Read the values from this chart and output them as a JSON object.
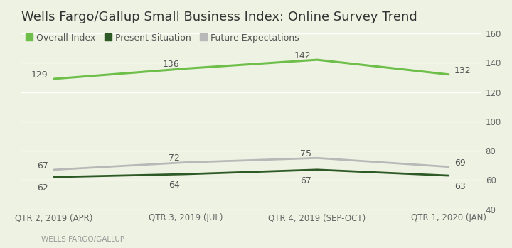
{
  "title": "Wells Fargo/Gallup Small Business Index: Online Survey Trend",
  "x_labels": [
    "QTR 2, 2019 (APR)",
    "QTR 3, 2019 (JUL)",
    "QTR 4, 2019 (SEP-OCT)",
    "QTR 1, 2020 (JAN)"
  ],
  "series": [
    {
      "name": "Overall Index",
      "values": [
        129,
        136,
        142,
        132
      ],
      "color": "#6dbf4a",
      "linewidth": 2.2,
      "zorder": 3
    },
    {
      "name": "Present Situation",
      "values": [
        62,
        64,
        67,
        63
      ],
      "color": "#2d5a27",
      "linewidth": 2.0,
      "zorder": 2
    },
    {
      "name": "Future Expectations",
      "values": [
        67,
        72,
        75,
        69
      ],
      "color": "#b8b8b8",
      "linewidth": 2.0,
      "zorder": 1
    }
  ],
  "ylim": [
    40,
    162
  ],
  "yticks": [
    40,
    60,
    80,
    100,
    120,
    140,
    160
  ],
  "background_color": "#eef2e2",
  "grid_color": "#ffffff",
  "title_fontsize": 13,
  "legend_fontsize": 9,
  "tick_fontsize": 8.5,
  "annotation_fontsize": 9,
  "annotation_color": "#555555",
  "source_text": "WELLS FARGO/GALLUP",
  "source_fontsize": 7.5,
  "source_color": "#999999"
}
